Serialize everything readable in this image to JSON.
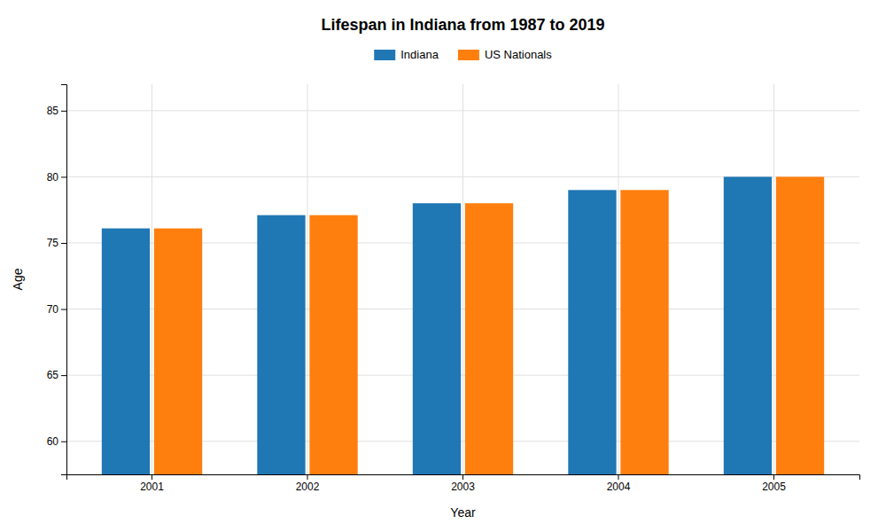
{
  "chart_data": {
    "type": "bar",
    "title": "Lifespan in Indiana from 1987 to 2019",
    "xlabel": "Year",
    "ylabel": "Age",
    "categories": [
      "2001",
      "2002",
      "2003",
      "2004",
      "2005"
    ],
    "series": [
      {
        "name": "Indiana",
        "values": [
          76.1,
          77.1,
          78.0,
          79.0,
          80.0
        ]
      },
      {
        "name": "US Nationals",
        "values": [
          76.1,
          77.1,
          78.0,
          79.0,
          80.0
        ]
      }
    ],
    "ylim": [
      57.5,
      87
    ],
    "yticks": [
      60,
      65,
      70,
      75,
      80,
      85
    ],
    "grid": true,
    "legend": "top"
  }
}
